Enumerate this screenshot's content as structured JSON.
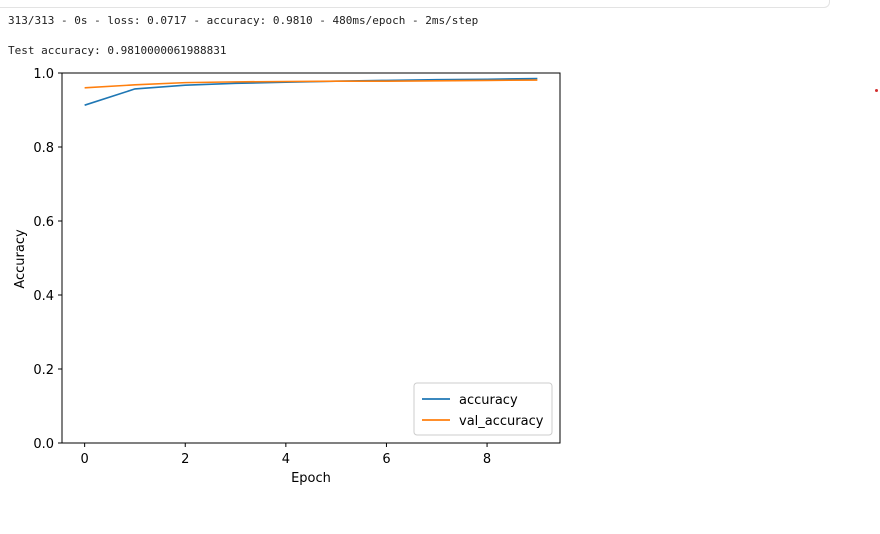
{
  "output": {
    "log_line": "313/313 - 0s - loss: 0.0717 - accuracy: 0.9810 - 480ms/epoch - 2ms/step",
    "test_line": "Test accuracy: 0.9810000061988831"
  },
  "chart_data": {
    "type": "line",
    "xlabel": "Epoch",
    "ylabel": "Accuracy",
    "xlim": [
      -0.45,
      9.45
    ],
    "ylim": [
      0.0,
      1.0
    ],
    "xticks": [
      0,
      2,
      4,
      6,
      8
    ],
    "yticks": [
      "0.0",
      "0.2",
      "0.4",
      "0.6",
      "0.8",
      "1.0"
    ],
    "legend_position": "lower-right",
    "grid": false,
    "x": [
      0,
      1,
      2,
      3,
      4,
      5,
      6,
      7,
      8,
      9
    ],
    "series": [
      {
        "name": "accuracy",
        "color": "#1f77b4",
        "values": [
          0.913,
          0.957,
          0.967,
          0.972,
          0.975,
          0.978,
          0.98,
          0.982,
          0.983,
          0.985
        ]
      },
      {
        "name": "val_accuracy",
        "color": "#ff7f0e",
        "values": [
          0.96,
          0.968,
          0.974,
          0.976,
          0.977,
          0.978,
          0.978,
          0.979,
          0.98,
          0.981
        ]
      }
    ]
  }
}
